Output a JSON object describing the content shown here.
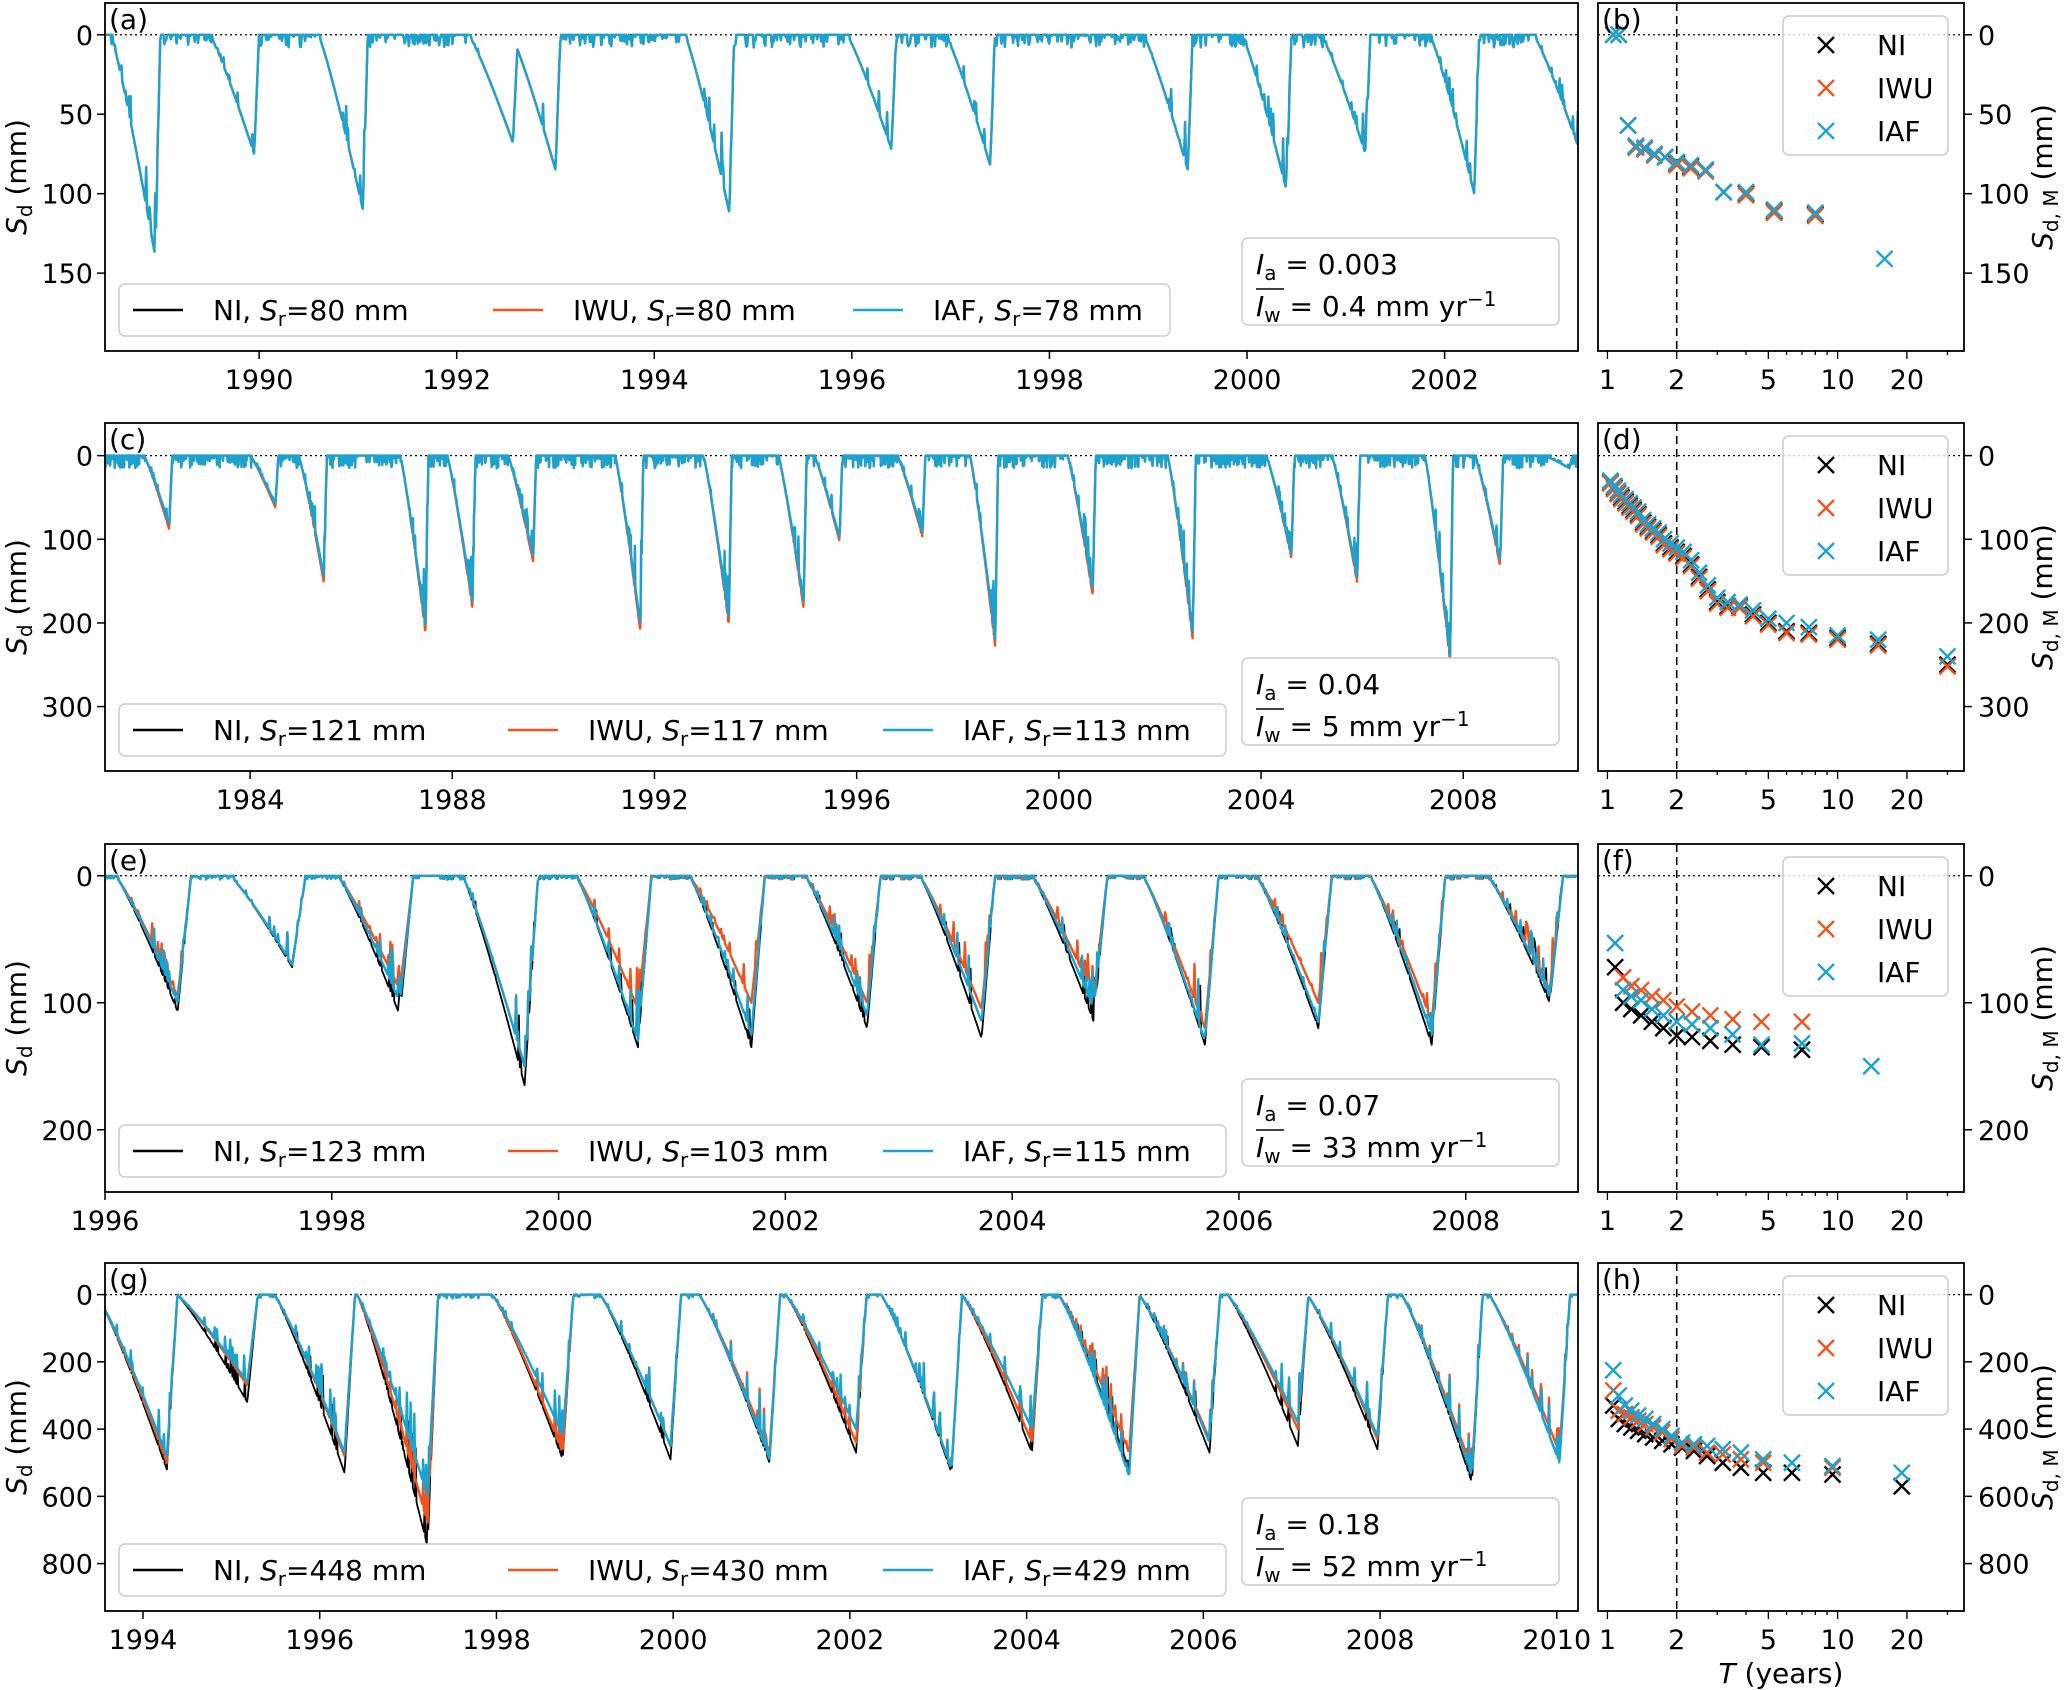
{
  "chart_data": {
    "type": "line",
    "common": {
      "left_ylabel": "S_d (mm)",
      "right_ylabel": "S_d,M (mm)",
      "right_xlabel": "T (years)",
      "right_xticks": [
        1,
        2,
        5,
        10,
        20
      ],
      "right_xlim": [
        0.91,
        35.4
      ],
      "return_period_line": 2,
      "colors": {
        "NI": "#000000",
        "IWU": "#f0541e",
        "IAF": "#1aa3d0"
      },
      "series_names": [
        "NI",
        "IWU",
        "IAF"
      ]
    },
    "panels": [
      {
        "ts_label": "(a)",
        "sc_label": "(b)",
        "xlim": [
          1988.44,
          2003.35
        ],
        "ylim": [
          -20,
          199
        ],
        "xticks": [
          1990,
          1992,
          1994,
          1996,
          1998,
          2000,
          2002
        ],
        "yticks": [
          0,
          50,
          100,
          150
        ],
        "Sr": {
          "NI": "80",
          "IWU": "80",
          "IAF": "78"
        },
        "Ia": "0.003",
        "Iw": "0.4",
        "dur": 0.45,
        "refill": 0.05,
        "troughs": [
          [
            1988.95,
            140,
            140,
            140
          ],
          [
            1989.95,
            75,
            75,
            75
          ],
          [
            1991.05,
            110,
            110,
            110
          ],
          [
            1992.57,
            68,
            68,
            68
          ],
          [
            1993.0,
            85,
            85,
            85
          ],
          [
            1994.76,
            112,
            112,
            112
          ],
          [
            1996.4,
            72,
            72,
            72
          ],
          [
            1997.4,
            82,
            82,
            82
          ],
          [
            1999.4,
            85,
            85,
            85
          ],
          [
            2000.4,
            98,
            98,
            98
          ],
          [
            2001.2,
            75,
            75,
            75
          ],
          [
            2002.3,
            100,
            100,
            100
          ],
          [
            2003.35,
            70,
            70,
            70
          ]
        ],
        "scatter": {
          "T": [
            1.06,
            1.12,
            1.23,
            1.33,
            1.45,
            1.6,
            1.78,
            2.0,
            2.3,
            2.67,
            3.2,
            4.0,
            5.3,
            8.0,
            16.0
          ],
          "NI": [
            0,
            0,
            57,
            70,
            72,
            75,
            77,
            81,
            83,
            85,
            99,
            100,
            111,
            113,
            null
          ],
          "IWU": [
            0,
            0,
            57,
            71,
            72,
            76,
            77,
            82,
            84,
            86,
            99,
            101,
            112,
            114,
            null
          ],
          "IAF": [
            0,
            0,
            57,
            70,
            71,
            75,
            77,
            80,
            82,
            85,
            99,
            99,
            110,
            112,
            141
          ]
        }
      },
      {
        "ts_label": "(c)",
        "sc_label": "(d)",
        "xlim": [
          1981.13,
          2010.27
        ],
        "ylim": [
          -39,
          377
        ],
        "xticks": [
          1984,
          1988,
          1992,
          1996,
          2000,
          2004,
          2008
        ],
        "yticks": [
          0,
          100,
          200,
          300
        ],
        "Sr": {
          "NI": "121",
          "IWU": "117",
          "IAF": "113"
        },
        "Ia": "0.04",
        "Iw": "5",
        "dur": 0.5,
        "refill": 0.06,
        "troughs": [
          [
            1982.4,
            85,
            88,
            82
          ],
          [
            1984.5,
            60,
            62,
            58
          ],
          [
            1985.46,
            150,
            152,
            145
          ],
          [
            1987.47,
            210,
            212,
            205
          ],
          [
            1988.4,
            180,
            182,
            175
          ],
          [
            1989.6,
            125,
            127,
            120
          ],
          [
            1991.72,
            207,
            210,
            202
          ],
          [
            1993.47,
            200,
            202,
            195
          ],
          [
            1994.95,
            180,
            182,
            175
          ],
          [
            1995.66,
            100,
            102,
            98
          ],
          [
            1997.3,
            95,
            97,
            92
          ],
          [
            1998.74,
            225,
            228,
            220
          ],
          [
            2000.67,
            165,
            167,
            160
          ],
          [
            2002.65,
            218,
            220,
            212
          ],
          [
            2004.6,
            120,
            122,
            118
          ],
          [
            2005.9,
            150,
            152,
            146
          ],
          [
            2007.74,
            245,
            247,
            240
          ],
          [
            2008.73,
            130,
            132,
            126
          ],
          [
            2010.1,
            15,
            15,
            15
          ]
        ],
        "scatter": {
          "T": [
            1.03,
            1.07,
            1.11,
            1.15,
            1.2,
            1.25,
            1.3,
            1.36,
            1.43,
            1.5,
            1.58,
            1.67,
            1.76,
            1.88,
            2.0,
            2.14,
            2.31,
            2.5,
            2.73,
            3.0,
            3.33,
            3.75,
            4.29,
            5.0,
            6.0,
            7.5,
            10.0,
            15.0,
            30.0
          ],
          "NI": [
            32,
            38,
            45,
            50,
            55,
            60,
            65,
            70,
            80,
            85,
            90,
            95,
            105,
            110,
            115,
            120,
            130,
            145,
            160,
            175,
            180,
            180,
            190,
            200,
            210,
            212,
            218,
            225,
            250
          ],
          "IWU": [
            33,
            40,
            46,
            52,
            57,
            62,
            67,
            72,
            82,
            87,
            92,
            97,
            107,
            112,
            117,
            122,
            132,
            147,
            162,
            177,
            182,
            182,
            192,
            202,
            212,
            214,
            220,
            227,
            252
          ],
          "IAF": [
            30,
            36,
            42,
            47,
            52,
            57,
            62,
            67,
            77,
            82,
            87,
            92,
            100,
            105,
            110,
            115,
            125,
            140,
            155,
            170,
            175,
            178,
            185,
            195,
            200,
            205,
            215,
            220,
            240
          ]
        }
      },
      {
        "ts_label": "(e)",
        "sc_label": "(f)",
        "xlim": [
          1996.0,
          2008.99
        ],
        "ylim": [
          -25,
          249
        ],
        "xticks": [
          1996,
          1998,
          2000,
          2002,
          2004,
          2006,
          2008
        ],
        "yticks": [
          0,
          100,
          200
        ],
        "Sr": {
          "NI": "123",
          "IWU": "103",
          "IAF": "115"
        },
        "Ia": "0.07",
        "Iw": "33",
        "dur": 0.55,
        "refill": 0.12,
        "troughs": [
          [
            1996.64,
            107,
            95,
            100
          ],
          [
            1997.65,
            72,
            70,
            70
          ],
          [
            1998.6,
            110,
            90,
            100
          ],
          [
            1999.7,
            165,
            150,
            150
          ],
          [
            2000.7,
            135,
            105,
            130
          ],
          [
            2001.7,
            135,
            100,
            125
          ],
          [
            2002.72,
            120,
            100,
            110
          ],
          [
            2003.73,
            128,
            105,
            115
          ],
          [
            2004.72,
            115,
            95,
            105
          ],
          [
            2005.7,
            133,
            120,
            130
          ],
          [
            2006.7,
            120,
            100,
            115
          ],
          [
            2007.7,
            133,
            115,
            125
          ],
          [
            2008.74,
            100,
            90,
            95
          ]
        ],
        "scatter": {
          "T": [
            1.08,
            1.17,
            1.27,
            1.4,
            1.56,
            1.75,
            2.0,
            2.33,
            2.8,
            3.5,
            4.67,
            7.0,
            14.0
          ],
          "NI": [
            72,
            100,
            105,
            110,
            115,
            120,
            126,
            127,
            130,
            133,
            135,
            137,
            null
          ],
          "IWU": [
            53,
            80,
            87,
            90,
            95,
            98,
            103,
            107,
            110,
            113,
            115,
            115,
            null
          ],
          "IAF": [
            53,
            90,
            95,
            98,
            105,
            110,
            115,
            117,
            120,
            125,
            133,
            132,
            150
          ]
        }
      },
      {
        "ts_label": "(g)",
        "sc_label": "(h)",
        "xlim": [
          1993.57,
          2010.24
        ],
        "ylim": [
          -94,
          941
        ],
        "xticks": [
          1994,
          1996,
          1998,
          2000,
          2002,
          2004,
          2006,
          2008,
          2010
        ],
        "yticks": [
          0,
          200,
          400,
          600,
          800
        ],
        "Sr": {
          "NI": "448",
          "IWU": "430",
          "IAF": "429"
        },
        "Ia": "0.18",
        "Iw": "52",
        "dur": 0.8,
        "refill": 0.12,
        "troughs": [
          [
            1994.27,
            520,
            500,
            480
          ],
          [
            1995.18,
            320,
            270,
            260
          ],
          [
            1996.28,
            530,
            480,
            470
          ],
          [
            1997.22,
            750,
            680,
            600
          ],
          [
            1998.75,
            490,
            470,
            420
          ],
          [
            1999.97,
            490,
            450,
            450
          ],
          [
            2001.09,
            500,
            470,
            490
          ],
          [
            2002.07,
            470,
            440,
            400
          ],
          [
            2003.15,
            530,
            520,
            520
          ],
          [
            2004.06,
            470,
            440,
            400
          ],
          [
            2005.16,
            520,
            470,
            540
          ],
          [
            2006.07,
            470,
            430,
            440
          ],
          [
            2007.07,
            450,
            400,
            380
          ],
          [
            2007.97,
            460,
            430,
            420
          ],
          [
            2009.04,
            560,
            520,
            540
          ],
          [
            2010.03,
            500,
            470,
            500
          ]
        ],
        "scatter": {
          "T": [
            1.06,
            1.12,
            1.19,
            1.27,
            1.36,
            1.46,
            1.58,
            1.73,
            1.9,
            2.11,
            2.375,
            2.71,
            3.17,
            3.8,
            4.75,
            6.33,
            9.5,
            19.0
          ],
          "NI": [
            330,
            370,
            385,
            395,
            405,
            415,
            425,
            435,
            445,
            455,
            465,
            480,
            500,
            515,
            530,
            530,
            535,
            570
          ],
          "IWU": [
            285,
            345,
            355,
            365,
            375,
            385,
            395,
            410,
            430,
            450,
            455,
            470,
            475,
            490,
            500,
            null,
            515,
            null
          ],
          "IAF": [
            225,
            300,
            330,
            345,
            360,
            370,
            385,
            400,
            420,
            440,
            445,
            450,
            460,
            470,
            490,
            500,
            510,
            530
          ]
        }
      }
    ],
    "legend_labels": {
      "Sr_prefix": "S",
      "Sr_sub": "r",
      "unit": "mm",
      "Ia_symbol": "I",
      "Ia_sub": "a",
      "Iw_symbol": "I",
      "Iw_sub": "w",
      "Iw_unit": "mm yr",
      "Iw_exp": "−1"
    }
  }
}
